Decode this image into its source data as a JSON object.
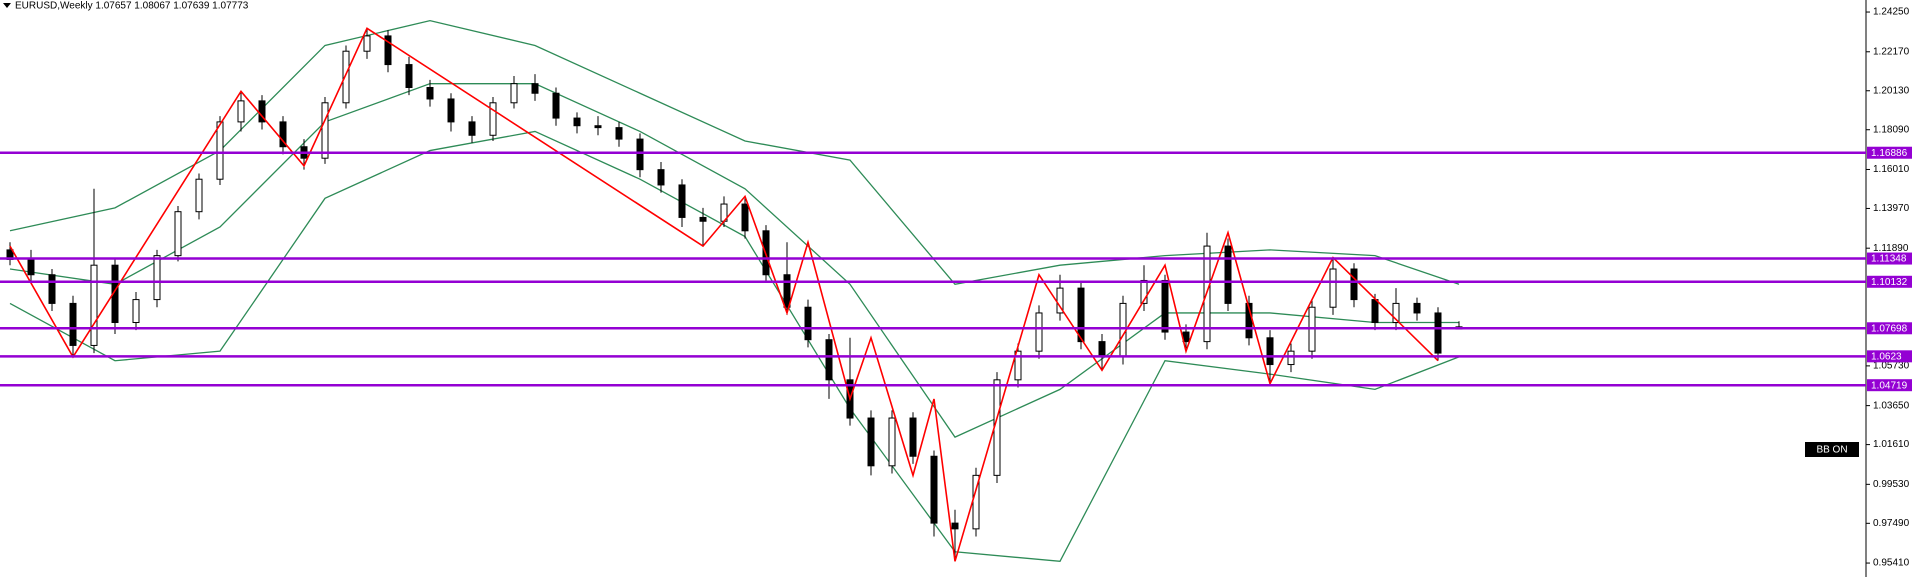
{
  "chart_data": {
    "type": "candlestick",
    "title": "EURUSD,Weekly  1.07657 1.08067 1.07639 1.07773",
    "button": "BB ON",
    "ylim": [
      0.9468,
      1.2488
    ],
    "yticks": [
      {
        "value": 1.2425,
        "label": "1.24250"
      },
      {
        "value": 1.2217,
        "label": "1.22170"
      },
      {
        "value": 1.2013,
        "label": "1.20130"
      },
      {
        "value": 1.1809,
        "label": "1.18090"
      },
      {
        "value": 1.1601,
        "label": "1.16010"
      },
      {
        "value": 1.1397,
        "label": "1.13970"
      },
      {
        "value": 1.1189,
        "label": "1.11890"
      },
      {
        "value": 1.0573,
        "label": "1.05730"
      },
      {
        "value": 1.0365,
        "label": "1.03650"
      },
      {
        "value": 1.0161,
        "label": "1.01610"
      },
      {
        "value": 0.9953,
        "label": "0.99530"
      },
      {
        "value": 0.9749,
        "label": "0.97490"
      },
      {
        "value": 0.9541,
        "label": "0.95410"
      }
    ],
    "levels": [
      1.16886,
      1.11348,
      1.10132,
      1.07698,
      1.0623,
      1.04719
    ],
    "level_color": "#9400d3",
    "candles": [
      [
        1.118,
        1.122,
        1.11,
        1.113
      ],
      [
        1.113,
        1.118,
        1.102,
        1.105
      ],
      [
        1.105,
        1.108,
        1.086,
        1.09
      ],
      [
        1.09,
        1.094,
        1.062,
        1.068
      ],
      [
        1.068,
        1.15,
        1.064,
        1.11
      ],
      [
        1.11,
        1.114,
        1.074,
        1.08
      ],
      [
        1.08,
        1.096,
        1.076,
        1.092
      ],
      [
        1.092,
        1.118,
        1.088,
        1.115
      ],
      [
        1.115,
        1.141,
        1.112,
        1.138
      ],
      [
        1.138,
        1.158,
        1.134,
        1.155
      ],
      [
        1.155,
        1.188,
        1.152,
        1.185
      ],
      [
        1.185,
        1.201,
        1.18,
        1.196
      ],
      [
        1.196,
        1.199,
        1.181,
        1.185
      ],
      [
        1.185,
        1.188,
        1.168,
        1.172
      ],
      [
        1.172,
        1.176,
        1.16,
        1.166
      ],
      [
        1.166,
        1.198,
        1.163,
        1.195
      ],
      [
        1.195,
        1.225,
        1.192,
        1.222
      ],
      [
        1.222,
        1.234,
        1.218,
        1.23
      ],
      [
        1.23,
        1.233,
        1.211,
        1.215
      ],
      [
        1.215,
        1.219,
        1.199,
        1.203
      ],
      [
        1.203,
        1.207,
        1.193,
        1.197
      ],
      [
        1.197,
        1.2,
        1.18,
        1.185
      ],
      [
        1.185,
        1.188,
        1.174,
        1.178
      ],
      [
        1.178,
        1.198,
        1.175,
        1.195
      ],
      [
        1.195,
        1.209,
        1.192,
        1.205
      ],
      [
        1.205,
        1.21,
        1.196,
        1.2
      ],
      [
        1.2,
        1.203,
        1.183,
        1.187
      ],
      [
        1.187,
        1.19,
        1.179,
        1.183
      ],
      [
        1.183,
        1.188,
        1.178,
        1.182
      ],
      [
        1.182,
        1.185,
        1.172,
        1.176
      ],
      [
        1.176,
        1.179,
        1.156,
        1.16
      ],
      [
        1.16,
        1.164,
        1.148,
        1.152
      ],
      [
        1.152,
        1.155,
        1.13,
        1.135
      ],
      [
        1.135,
        1.14,
        1.12,
        1.133
      ],
      [
        1.133,
        1.146,
        1.13,
        1.142
      ],
      [
        1.142,
        1.145,
        1.124,
        1.128
      ],
      [
        1.128,
        1.131,
        1.101,
        1.105
      ],
      [
        1.105,
        1.122,
        1.084,
        1.088
      ],
      [
        1.088,
        1.092,
        1.067,
        1.071
      ],
      [
        1.071,
        1.074,
        1.04,
        1.05
      ],
      [
        1.05,
        1.072,
        1.026,
        1.03
      ],
      [
        1.03,
        1.034,
        1.0,
        1.005
      ],
      [
        1.005,
        1.034,
        1.001,
        1.03
      ],
      [
        1.03,
        1.033,
        1.006,
        1.01
      ],
      [
        1.01,
        1.013,
        0.968,
        0.975
      ],
      [
        0.975,
        0.982,
        0.955,
        0.972
      ],
      [
        0.972,
        1.004,
        0.968,
        1.0
      ],
      [
        1.0,
        1.054,
        0.996,
        1.05
      ],
      [
        1.05,
        1.069,
        1.046,
        1.065
      ],
      [
        1.065,
        1.089,
        1.061,
        1.085
      ],
      [
        1.085,
        1.105,
        1.081,
        1.098
      ],
      [
        1.098,
        1.101,
        1.066,
        1.07
      ],
      [
        1.07,
        1.074,
        1.055,
        1.062
      ],
      [
        1.062,
        1.094,
        1.058,
        1.09
      ],
      [
        1.09,
        1.11,
        1.086,
        1.102
      ],
      [
        1.102,
        1.105,
        1.071,
        1.075
      ],
      [
        1.075,
        1.079,
        1.065,
        1.07
      ],
      [
        1.07,
        1.127,
        1.066,
        1.12
      ],
      [
        1.12,
        1.124,
        1.086,
        1.09
      ],
      [
        1.09,
        1.094,
        1.068,
        1.072
      ],
      [
        1.072,
        1.076,
        1.048,
        1.058
      ],
      [
        1.058,
        1.069,
        1.054,
        1.065
      ],
      [
        1.065,
        1.092,
        1.061,
        1.088
      ],
      [
        1.088,
        1.114,
        1.084,
        1.108
      ],
      [
        1.108,
        1.111,
        1.088,
        1.092
      ],
      [
        1.092,
        1.095,
        1.076,
        1.08
      ],
      [
        1.08,
        1.098,
        1.076,
        1.09
      ],
      [
        1.09,
        1.093,
        1.081,
        1.085
      ],
      [
        1.085,
        1.088,
        1.06,
        1.064
      ],
      [
        1.07657,
        1.08067,
        1.07639,
        1.07773
      ]
    ],
    "bands": {
      "color": "#2e8b57",
      "x": [
        0,
        5,
        10,
        15,
        20,
        25,
        30,
        35,
        40,
        45,
        50,
        55,
        60,
        65,
        69
      ],
      "upper": [
        1.128,
        1.14,
        1.17,
        1.225,
        1.238,
        1.225,
        1.2,
        1.175,
        1.165,
        1.1,
        1.11,
        1.115,
        1.118,
        1.115,
        1.1
      ],
      "middle": [
        1.108,
        1.1,
        1.13,
        1.185,
        1.205,
        1.205,
        1.18,
        1.15,
        1.1,
        1.02,
        1.045,
        1.085,
        1.085,
        1.08,
        1.08
      ],
      "lower": [
        1.09,
        1.06,
        1.065,
        1.145,
        1.17,
        1.18,
        1.155,
        1.125,
        1.035,
        0.96,
        0.955,
        1.06,
        1.053,
        1.045,
        1.062
      ]
    },
    "zigzag": {
      "color": "#ff0000",
      "x": [
        0,
        3,
        11,
        14,
        17,
        33,
        35,
        37,
        38,
        40,
        41,
        43,
        44,
        45,
        49,
        52,
        55,
        56,
        58,
        60,
        63,
        68
      ],
      "values": [
        1.12,
        1.062,
        1.201,
        1.162,
        1.234,
        1.12,
        1.146,
        1.085,
        1.122,
        1.04,
        1.072,
        1.0,
        1.04,
        0.955,
        1.105,
        1.055,
        1.11,
        1.065,
        1.127,
        1.048,
        1.114,
        1.06
      ]
    }
  }
}
